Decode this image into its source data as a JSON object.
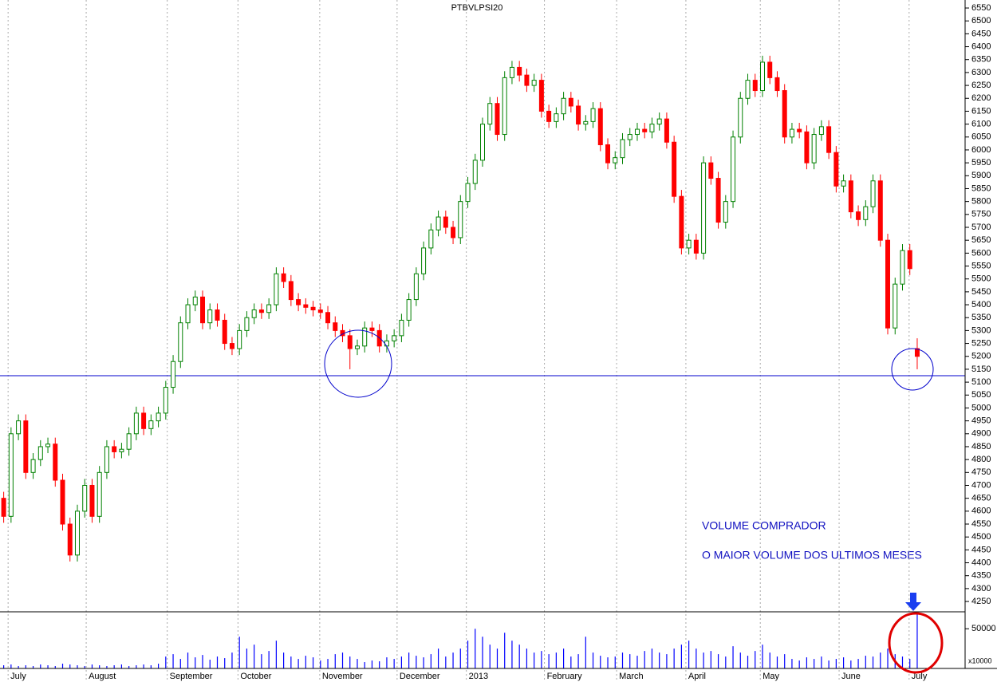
{
  "chart_data": {
    "type": "candlestick",
    "title": "PTBVLPSI20",
    "annotations": [
      "VOLUME COMPRADOR",
      "O MAIOR VOLUME DOS ULTIMOS MESES"
    ],
    "up_color": "#008000",
    "down_color": "#ff0000",
    "line_color": "#0000cc",
    "hline": 5125,
    "xlim": [
      -0.5,
      130.5
    ],
    "xticks": [
      {
        "value": 0.6,
        "label": "July"
      },
      {
        "value": 11.2,
        "label": "August"
      },
      {
        "value": 22.2,
        "label": "September"
      },
      {
        "value": 31.8,
        "label": "October"
      },
      {
        "value": 42.9,
        "label": "November"
      },
      {
        "value": 53.4,
        "label": "December"
      },
      {
        "value": 62.8,
        "label": "2013"
      },
      {
        "value": 73.4,
        "label": "February"
      },
      {
        "value": 83.2,
        "label": "March"
      },
      {
        "value": 92.6,
        "label": "April"
      },
      {
        "value": 102.7,
        "label": "May"
      },
      {
        "value": 113.4,
        "label": "June"
      },
      {
        "value": 122.9,
        "label": "July"
      }
    ],
    "ylim": [
      4210,
      6581
    ],
    "yticks": [
      4250,
      4300,
      4350,
      4400,
      4450,
      4500,
      4550,
      4600,
      4650,
      4700,
      4750,
      4800,
      4850,
      4900,
      4950,
      5000,
      5050,
      5100,
      5150,
      5200,
      5250,
      5300,
      5350,
      5400,
      5450,
      5500,
      5550,
      5600,
      5650,
      5700,
      5750,
      5800,
      5850,
      5900,
      5950,
      6000,
      6050,
      6100,
      6150,
      6200,
      6250,
      6300,
      6350,
      6400,
      6450,
      6500,
      6550
    ],
    "open": [
      4650,
      4580,
      4900,
      4950,
      4750,
      4800,
      4850,
      4860,
      4720,
      4550,
      4430,
      4600,
      4700,
      4580,
      4750,
      4850,
      4830,
      4840,
      4900,
      4980,
      4920,
      4950,
      4980,
      5080,
      5180,
      5330,
      5400,
      5430,
      5330,
      5380,
      5340,
      5250,
      5230,
      5300,
      5350,
      5380,
      5370,
      5400,
      5520,
      5490,
      5420,
      5400,
      5390,
      5380,
      5370,
      5330,
      5300,
      5280,
      5230,
      5240,
      5310,
      5300,
      5240,
      5260,
      5280,
      5340,
      5420,
      5520,
      5620,
      5690,
      5740,
      5700,
      5660,
      5800,
      5870,
      5960,
      6100,
      6180,
      6060,
      6280,
      6320,
      6290,
      6250,
      6270,
      6150,
      6110,
      6140,
      6200,
      6170,
      6100,
      6110,
      6160,
      6020,
      5950,
      5970,
      6040,
      6060,
      6080,
      6070,
      6100,
      6120,
      6030,
      5820,
      5620,
      5650,
      5600,
      5950,
      5890,
      5720,
      5800,
      6050,
      6200,
      6270,
      6230,
      6340,
      6280,
      6230,
      6050,
      6080,
      6070,
      5950,
      6060,
      6090,
      5990,
      5860,
      5880,
      5760,
      5730,
      5780,
      5880,
      5650,
      5310,
      5480,
      5610,
      5230
    ],
    "high": [
      4675,
      4925,
      4975,
      4975,
      4825,
      4875,
      4885,
      4885,
      4745,
      4575,
      4625,
      4725,
      4725,
      4775,
      4875,
      4875,
      4865,
      4925,
      5005,
      5005,
      4975,
      5005,
      5105,
      5205,
      5355,
      5425,
      5455,
      5455,
      5405,
      5405,
      5365,
      5275,
      5325,
      5375,
      5405,
      5405,
      5425,
      5545,
      5545,
      5515,
      5445,
      5425,
      5415,
      5405,
      5395,
      5355,
      5325,
      5305,
      5265,
      5335,
      5335,
      5325,
      5285,
      5305,
      5365,
      5445,
      5545,
      5645,
      5715,
      5765,
      5765,
      5725,
      5825,
      5895,
      5985,
      6125,
      6205,
      6205,
      6305,
      6345,
      6345,
      6315,
      6295,
      6295,
      6175,
      6165,
      6225,
      6225,
      6195,
      6135,
      6185,
      6185,
      6045,
      5995,
      6065,
      6085,
      6105,
      6105,
      6125,
      6145,
      6145,
      6055,
      5845,
      5675,
      5675,
      5975,
      5975,
      5915,
      5825,
      6075,
      6225,
      6295,
      6295,
      6365,
      6365,
      6305,
      6255,
      6105,
      6105,
      6095,
      6085,
      6115,
      6115,
      6015,
      5905,
      5905,
      5785,
      5805,
      5905,
      5905,
      5675,
      5505,
      5635,
      5635,
      5270
    ],
    "low": [
      4555,
      4555,
      4875,
      4725,
      4725,
      4775,
      4825,
      4695,
      4525,
      4405,
      4405,
      4575,
      4555,
      4555,
      4725,
      4805,
      4805,
      4815,
      4875,
      4895,
      4895,
      4925,
      4955,
      5055,
      5155,
      5305,
      5375,
      5305,
      5305,
      5315,
      5225,
      5205,
      5205,
      5275,
      5325,
      5345,
      5345,
      5375,
      5465,
      5395,
      5375,
      5365,
      5355,
      5345,
      5305,
      5275,
      5255,
      5150,
      5205,
      5215,
      5275,
      5215,
      5215,
      5235,
      5255,
      5315,
      5395,
      5495,
      5595,
      5665,
      5675,
      5635,
      5635,
      5775,
      5845,
      5935,
      6075,
      6035,
      6035,
      6255,
      6265,
      6225,
      6225,
      6125,
      6085,
      6085,
      6115,
      6145,
      6075,
      6075,
      6085,
      5995,
      5925,
      5925,
      5945,
      6015,
      6035,
      6045,
      6045,
      6075,
      6005,
      5795,
      5595,
      5595,
      5575,
      5575,
      5865,
      5695,
      5695,
      5775,
      6025,
      6175,
      6205,
      6205,
      6255,
      6205,
      6025,
      6025,
      6045,
      5925,
      5925,
      6035,
      5965,
      5835,
      5835,
      5735,
      5705,
      5705,
      5755,
      5625,
      5285,
      5285,
      5455,
      5515,
      5150
    ],
    "close": [
      4580,
      4900,
      4950,
      4750,
      4800,
      4850,
      4860,
      4720,
      4550,
      4430,
      4600,
      4700,
      4580,
      4750,
      4850,
      4830,
      4840,
      4900,
      4980,
      4920,
      4950,
      4980,
      5080,
      5180,
      5330,
      5400,
      5430,
      5330,
      5380,
      5340,
      5250,
      5230,
      5300,
      5350,
      5380,
      5370,
      5400,
      5520,
      5490,
      5420,
      5400,
      5390,
      5380,
      5370,
      5330,
      5300,
      5280,
      5230,
      5240,
      5310,
      5300,
      5240,
      5260,
      5280,
      5340,
      5420,
      5520,
      5620,
      5690,
      5740,
      5700,
      5660,
      5800,
      5870,
      5960,
      6100,
      6180,
      6060,
      6280,
      6320,
      6290,
      6250,
      6270,
      6150,
      6110,
      6140,
      6200,
      6170,
      6100,
      6110,
      6160,
      6020,
      5950,
      5970,
      6040,
      6060,
      6080,
      6070,
      6100,
      6120,
      6030,
      5820,
      5620,
      5650,
      5600,
      5950,
      5890,
      5720,
      5800,
      6050,
      6200,
      6270,
      6230,
      6340,
      6280,
      6230,
      6050,
      6080,
      6070,
      5950,
      6060,
      6090,
      5990,
      5860,
      5880,
      5760,
      5730,
      5780,
      5880,
      5650,
      5310,
      5480,
      5610,
      5540,
      5200
    ],
    "volume": {
      "color": "#0000ff",
      "ylim": [
        0,
        71400
      ],
      "yticks": [
        50000
      ],
      "unit_label": "x10000",
      "values": [
        4000,
        5000,
        3000,
        4000,
        3000,
        5000,
        4000,
        3000,
        6000,
        5000,
        4000,
        3000,
        5000,
        4000,
        3000,
        4000,
        5000,
        3000,
        4000,
        5000,
        4000,
        6000,
        15000,
        18000,
        12000,
        20000,
        14000,
        17000,
        11000,
        15000,
        13000,
        20000,
        40000,
        25000,
        30000,
        18000,
        22000,
        35000,
        20000,
        15000,
        12000,
        16000,
        14000,
        10000,
        12000,
        18000,
        20000,
        15000,
        12000,
        8000,
        10000,
        9000,
        14000,
        12000,
        15000,
        20000,
        16000,
        14000,
        18000,
        25000,
        15000,
        20000,
        25000,
        35000,
        50000,
        40000,
        30000,
        25000,
        45000,
        35000,
        30000,
        25000,
        20000,
        22000,
        18000,
        20000,
        25000,
        15000,
        18000,
        40000,
        20000,
        16000,
        14000,
        15000,
        20000,
        18000,
        16000,
        22000,
        25000,
        20000,
        18000,
        25000,
        30000,
        35000,
        25000,
        20000,
        22000,
        18000,
        15000,
        28000,
        20000,
        16000,
        22000,
        30000,
        20000,
        15000,
        18000,
        12000,
        10000,
        14000,
        12000,
        15000,
        10000,
        12000,
        14000,
        10000,
        12000,
        16000,
        15000,
        20000,
        25000,
        18000,
        15000,
        12000,
        68000
      ]
    }
  }
}
